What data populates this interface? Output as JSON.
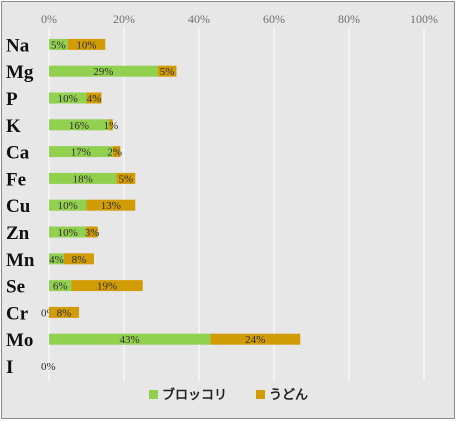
{
  "colors": {
    "background": "#e7e7e7",
    "gridline": "#ffffff",
    "border": "#8c8c8c"
  },
  "chart_data": {
    "type": "bar",
    "orientation": "horizontal",
    "stacked": true,
    "categories": [
      "Na",
      "Mg",
      "P",
      "K",
      "Ca",
      "Fe",
      "Cu",
      "Zn",
      "Mn",
      "Se",
      "Cr",
      "Mo",
      "I"
    ],
    "series": [
      {
        "name": "ブロッコリ",
        "color": "#92d050",
        "values": [
          5,
          29,
          10,
          16,
          17,
          18,
          10,
          10,
          4,
          6,
          0,
          43,
          0
        ],
        "labels": [
          "5%",
          "29%",
          "10%",
          "16%",
          "17%",
          "18%",
          "10%",
          "10%",
          "4%",
          "6%",
          "0%",
          "43%",
          "0%"
        ]
      },
      {
        "name": "うどん",
        "color": "#d19c06",
        "values": [
          10,
          5,
          4,
          1,
          2,
          5,
          13,
          3,
          8,
          19,
          8,
          24,
          0
        ],
        "labels": [
          "10%",
          "5%",
          "4%",
          "1%",
          "2%",
          "5%",
          "13%",
          "3%",
          "8%",
          "19%",
          "8%",
          "24%",
          ""
        ]
      }
    ],
    "xlim": [
      0,
      100
    ],
    "xticks": [
      "0%",
      "20%",
      "40%",
      "60%",
      "80%",
      "100%"
    ],
    "title": "",
    "xlabel": "",
    "ylabel": "",
    "grid": "vertical",
    "legend": "bottom"
  }
}
